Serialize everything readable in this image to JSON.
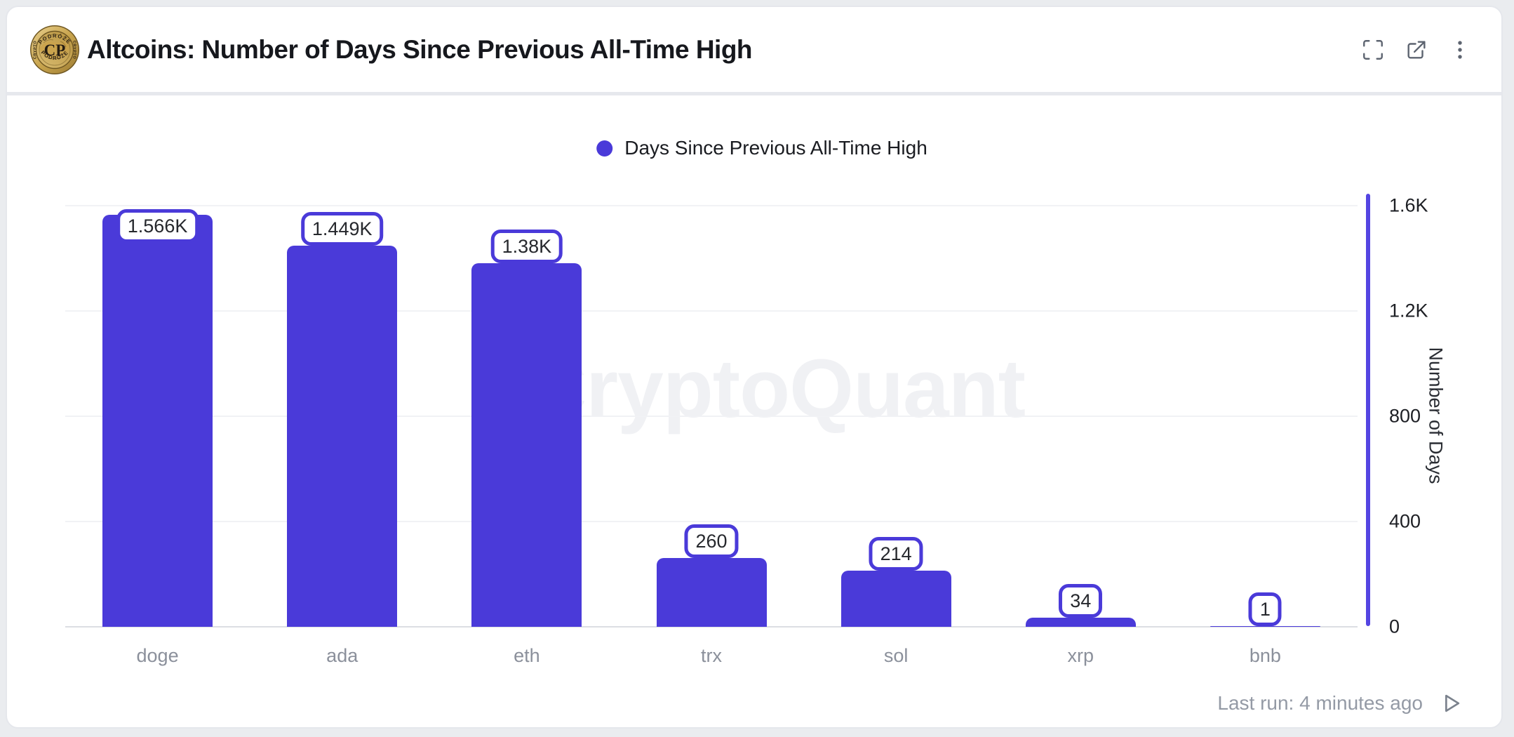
{
  "header": {
    "title": "Altcoins: Number of Days Since Previous All-Time High",
    "logo": {
      "center_text": "CP",
      "ring_top": "PODRÓŻE",
      "ring_bottom": "PODRÓŻE",
      "ring_left": "CRYPTO",
      "ring_right": "CRYPTO"
    }
  },
  "legend": {
    "label": "Days Since Previous All-Time High"
  },
  "watermark": "CryptoQuant",
  "chart_data": {
    "type": "bar",
    "title": "Altcoins: Number of Days Since Previous All-Time High",
    "series_name": "Days Since Previous All-Time High",
    "categories": [
      "doge",
      "ada",
      "eth",
      "trx",
      "sol",
      "xrp",
      "bnb"
    ],
    "values": [
      1566,
      1449,
      1380,
      260,
      214,
      34,
      1
    ],
    "value_labels": [
      "1.566K",
      "1.449K",
      "1.38K",
      "260",
      "214",
      "34",
      "1"
    ],
    "xlabel": "",
    "ylabel": "Number of Days",
    "ylim": [
      0,
      1600
    ],
    "y_ticks": [
      "1.6K",
      "1.2K",
      "800",
      "400",
      "0"
    ],
    "y_tick_values": [
      1600,
      1200,
      800,
      400,
      0
    ],
    "grid": true,
    "legend_position": "top-center",
    "bar_color": "#4a3ad9"
  },
  "colors": {
    "accent_purple": "#4a3ad9",
    "axis_line_purple": "#5445e2",
    "page_background": "#eaecef",
    "card_background": "#ffffff",
    "gridline": "#f1f2f5",
    "muted_text": "#8b909b",
    "dark_text": "#16181d"
  },
  "footer": {
    "last_run": "Last run: 4 minutes ago"
  }
}
